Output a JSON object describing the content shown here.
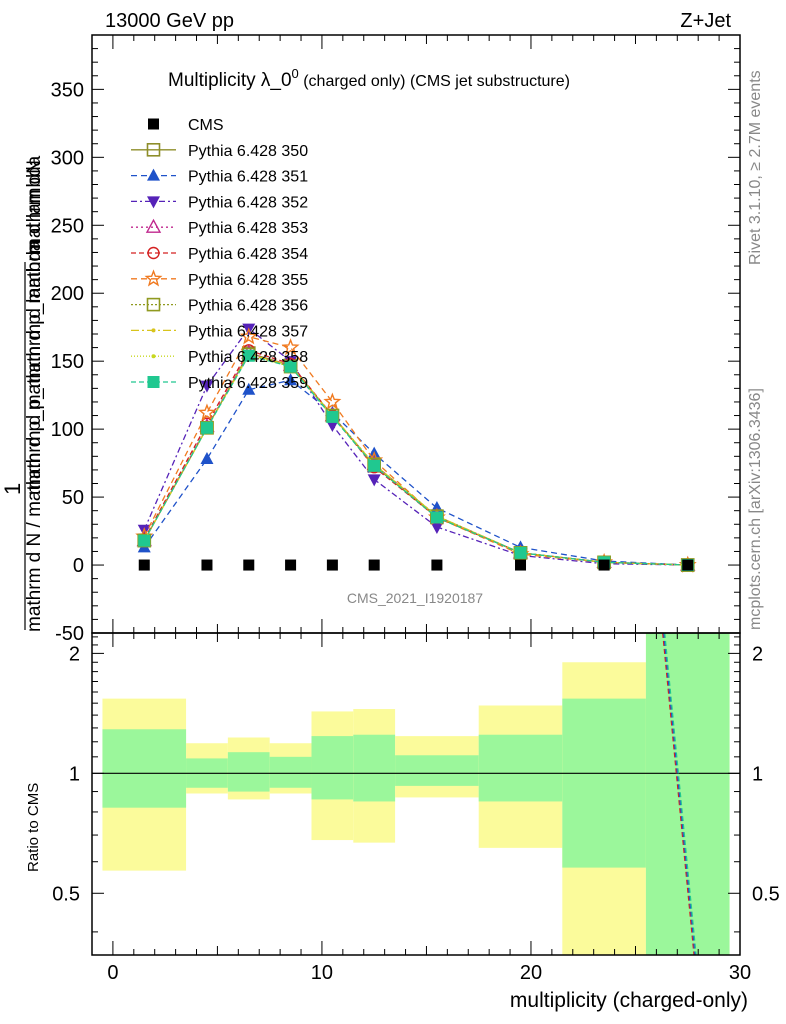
{
  "header": {
    "left": "13000 GeV pp",
    "right": "Z+Jet"
  },
  "side_labels": {
    "rivet": "Rivet 3.1.10, ≥ 2.7M events",
    "mcplots": "mcplots.cern.ch [arXiv:1306.3436]"
  },
  "colors": {
    "cms": "#000000",
    "s350": "#8e8e2a",
    "s351": "#1f52c9",
    "s352": "#5522b8",
    "s353": "#c0288e",
    "s354": "#d42020",
    "s355": "#f07a20",
    "s356": "#909a20",
    "s357": "#d8c41c",
    "s358": "#c8d820",
    "s359": "#20c890",
    "band_inner": "#9bf79b",
    "band_outer": "#fbfb9b"
  },
  "chart_data": [
    {
      "type": "line",
      "title": "Multiplicity λ_0",
      "title_sup": "0",
      "title_suffix": " (charged only) (CMS jet substructure)",
      "ylabel_top": "mathrm dN",
      "ylabel_one": "1",
      "ylabel_mid": "mathrm d p_mathrm d lambda",
      "ylabel_bottom": "mathrm d N / mathrm d p_mathrm d p_mathrm d lambda",
      "watermark": "CMS_2021_I1920187",
      "xlim": [
        -1,
        30
      ],
      "ylim": [
        -50,
        390
      ],
      "yticks": [
        -50,
        0,
        50,
        100,
        150,
        200,
        250,
        300,
        350
      ],
      "legend_position": "top-left",
      "x": [
        1.5,
        4.5,
        6.5,
        8.5,
        10.5,
        12.5,
        15.5,
        19.5,
        23.5,
        27.5
      ],
      "cms": {
        "name": "CMS",
        "values": [
          0,
          0,
          0,
          0,
          0,
          0,
          0,
          0,
          0,
          0
        ]
      },
      "series": [
        {
          "key": "s350",
          "name": "Pythia 6.428 350",
          "marker": "square-open",
          "dash": "",
          "values": [
            18,
            101,
            156,
            147,
            110,
            73,
            35,
            9,
            2,
            0
          ]
        },
        {
          "key": "s351",
          "name": "Pythia 6.428 351",
          "marker": "triangle-up",
          "dash": "6,4",
          "values": [
            13,
            78,
            129,
            136,
            112,
            82,
            42,
            13,
            3,
            0
          ]
        },
        {
          "key": "s352",
          "name": "Pythia 6.428 352",
          "marker": "triangle-down",
          "dash": "6,3,2,3",
          "values": [
            26,
            132,
            174,
            150,
            103,
            63,
            28,
            7,
            1,
            0
          ]
        },
        {
          "key": "s353",
          "name": "Pythia 6.428 353",
          "marker": "triangle-open",
          "dash": "2,3",
          "values": [
            18,
            102,
            156,
            147,
            110,
            74,
            36,
            9,
            2,
            0
          ]
        },
        {
          "key": "s354",
          "name": "Pythia 6.428 354",
          "marker": "circle-open",
          "dash": "5,3",
          "values": [
            19,
            104,
            158,
            148,
            110,
            72,
            35,
            9,
            2,
            0
          ]
        },
        {
          "key": "s355",
          "name": "Pythia 6.428 355",
          "marker": "star-open",
          "dash": "6,4",
          "values": [
            21,
            112,
            168,
            160,
            120,
            77,
            35,
            8,
            2,
            0
          ]
        },
        {
          "key": "s356",
          "name": "Pythia 6.428 356",
          "marker": "square-open",
          "dash": "2,2",
          "values": [
            18,
            101,
            155,
            146,
            110,
            74,
            36,
            9,
            2,
            0
          ]
        },
        {
          "key": "s357",
          "name": "Pythia 6.428 357",
          "marker": "dot",
          "dash": "8,3,2,3",
          "values": [
            18,
            101,
            155,
            147,
            110,
            74,
            36,
            9,
            2,
            0
          ]
        },
        {
          "key": "s358",
          "name": "Pythia 6.428 358",
          "marker": "dot",
          "dash": "1,2",
          "values": [
            18,
            101,
            154,
            146,
            109,
            74,
            36,
            9,
            2,
            0
          ]
        },
        {
          "key": "s359",
          "name": "Pythia 6.428 359",
          "marker": "square-filled",
          "dash": "5,3",
          "values": [
            18,
            101,
            154,
            146,
            109,
            73,
            35,
            9,
            2,
            0
          ]
        }
      ]
    },
    {
      "type": "area",
      "ylabel": "Ratio to CMS",
      "xlabel": "multiplicity (charged-only)",
      "xlim": [
        -1,
        30
      ],
      "ylim": [
        0.35,
        2.25
      ],
      "yticks": [
        0.5,
        1,
        2
      ],
      "xticks": [
        0,
        10,
        20,
        30
      ],
      "bins": [
        {
          "lo": -0.5,
          "hi": 3.5,
          "inner": [
            0.82,
            1.29
          ],
          "outer": [
            0.57,
            1.54
          ]
        },
        {
          "lo": 3.5,
          "hi": 5.5,
          "inner": [
            0.92,
            1.09
          ],
          "outer": [
            0.89,
            1.19
          ]
        },
        {
          "lo": 5.5,
          "hi": 7.5,
          "inner": [
            0.9,
            1.13
          ],
          "outer": [
            0.86,
            1.23
          ]
        },
        {
          "lo": 7.5,
          "hi": 9.5,
          "inner": [
            0.92,
            1.1
          ],
          "outer": [
            0.89,
            1.19
          ]
        },
        {
          "lo": 9.5,
          "hi": 11.5,
          "inner": [
            0.86,
            1.24
          ],
          "outer": [
            0.68,
            1.43
          ]
        },
        {
          "lo": 11.5,
          "hi": 13.5,
          "inner": [
            0.85,
            1.25
          ],
          "outer": [
            0.67,
            1.45
          ]
        },
        {
          "lo": 13.5,
          "hi": 17.5,
          "inner": [
            0.93,
            1.11
          ],
          "outer": [
            0.87,
            1.24
          ]
        },
        {
          "lo": 17.5,
          "hi": 21.5,
          "inner": [
            0.85,
            1.25
          ],
          "outer": [
            0.65,
            1.48
          ]
        },
        {
          "lo": 21.5,
          "hi": 25.5,
          "inner": [
            0.58,
            1.54
          ],
          "outer": [
            0.35,
            1.9
          ]
        },
        {
          "lo": 25.5,
          "hi": 29.5,
          "inner": [
            0.35,
            2.25
          ],
          "outer": [
            0.35,
            2.25
          ]
        }
      ],
      "reference": 1,
      "ratio_lines": [
        {
          "key": "s354",
          "x": [
            26.3,
            27.8
          ],
          "y": [
            2.25,
            0.35
          ]
        },
        {
          "key": "s351",
          "x": [
            26.35,
            27.85
          ],
          "y": [
            2.25,
            0.35
          ]
        },
        {
          "key": "s359",
          "x": [
            26.4,
            27.9
          ],
          "y": [
            2.25,
            0.35
          ]
        }
      ]
    }
  ]
}
